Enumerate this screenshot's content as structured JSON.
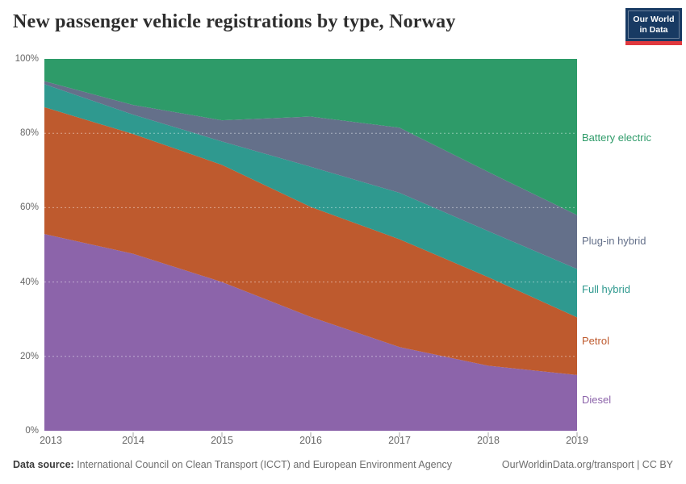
{
  "header": {
    "logo": {
      "line1": "Our World",
      "line2": "in Data",
      "navy_hex": "#183A63",
      "red_hex": "#E0393E"
    }
  },
  "footer": {
    "source_label": "Data source:",
    "source_text": " International Council on Clean Transport (ICCT) and European Environment Agency",
    "link_text": "OurWorldinData.org/transport | CC BY"
  },
  "chart_data": {
    "type": "area",
    "stacked": true,
    "title": "New passenger vehicle registrations by type, Norway",
    "unit": "%",
    "x": [
      2013,
      2014,
      2015,
      2016,
      2017,
      2018,
      2019
    ],
    "series": [
      {
        "name": "Diesel",
        "color": "#8C64AA",
        "values": [
          52.9,
          47.6,
          40.0,
          30.6,
          22.5,
          17.5,
          15.0
        ]
      },
      {
        "name": "Petrol",
        "color": "#BE5A2E",
        "values": [
          34.1,
          32.2,
          31.5,
          29.6,
          29.0,
          23.8,
          15.5
        ]
      },
      {
        "name": "Full hybrid",
        "color": "#2F998F",
        "values": [
          6.2,
          5.2,
          6.3,
          10.8,
          12.5,
          12.4,
          13.0
        ]
      },
      {
        "name": "Plug-in hybrid",
        "color": "#64708A",
        "values": [
          0.8,
          2.6,
          5.7,
          13.5,
          17.5,
          15.9,
          14.5
        ]
      },
      {
        "name": "Battery electric",
        "color": "#2E9B69",
        "values": [
          6.0,
          12.4,
          16.5,
          15.5,
          18.5,
          30.4,
          42.0
        ]
      }
    ],
    "xlim": [
      2013,
      2019
    ],
    "ylim": [
      0,
      100
    ],
    "yticks": [
      "0%",
      "20%",
      "40%",
      "60%",
      "80%",
      "100%"
    ],
    "ytick_values": [
      0,
      20,
      40,
      60,
      80,
      100
    ],
    "grid": "dashed horizontal lines at 20/40/60/80%",
    "legend_position": "right, labels colored by series, ordered top-to-bottom by stack"
  }
}
